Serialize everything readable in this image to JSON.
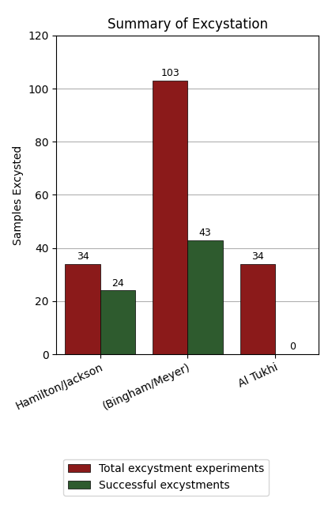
{
  "chart_data": {
    "type": "bar",
    "title": "Summary of Excystation",
    "categories": [
      "Hamilton/Jackson",
      "(Bingham/Meyer)",
      "Al Tukhi"
    ],
    "series": [
      {
        "name": "Total excystment experiments",
        "color": "#8B1A1A",
        "values": [
          34,
          103,
          34
        ]
      },
      {
        "name": "Successful excystments",
        "color": "#2E5B2E",
        "values": [
          24,
          43,
          0
        ]
      }
    ],
    "ylabel": "Samples Excysted",
    "ylim": [
      0,
      120
    ],
    "yticks": [
      0,
      20,
      40,
      60,
      80,
      100,
      120
    ],
    "grid": true,
    "legend": "lower center",
    "data_labels": true
  }
}
